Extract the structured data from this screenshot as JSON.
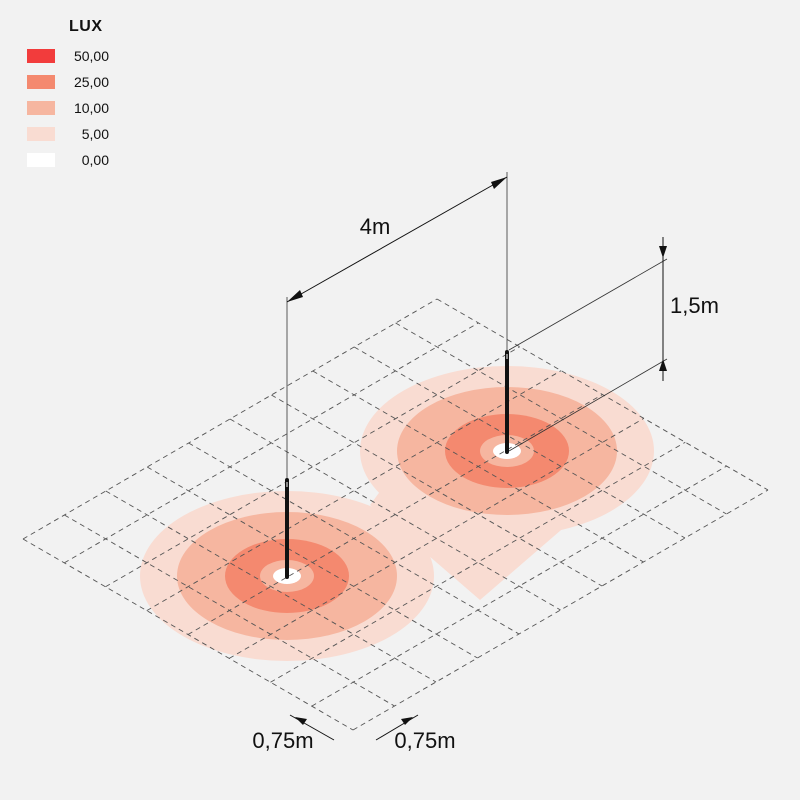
{
  "legend": {
    "title": "LUX",
    "items": [
      {
        "value": "50,00",
        "color": "#f23c3c"
      },
      {
        "value": "25,00",
        "color": "#f4896f"
      },
      {
        "value": "10,00",
        "color": "#f6b6a0"
      },
      {
        "value": "5,00",
        "color": "#f9dcd2"
      },
      {
        "value": "0,00",
        "color": "#ffffff"
      }
    ]
  },
  "dimensions": {
    "spacing": "4m",
    "height": "1,5m",
    "grid_left": "0,75m",
    "grid_right": "0,75m"
  },
  "colors": {
    "background": "#f2f2f2",
    "pole": "#111111",
    "grid": "#555555"
  }
}
